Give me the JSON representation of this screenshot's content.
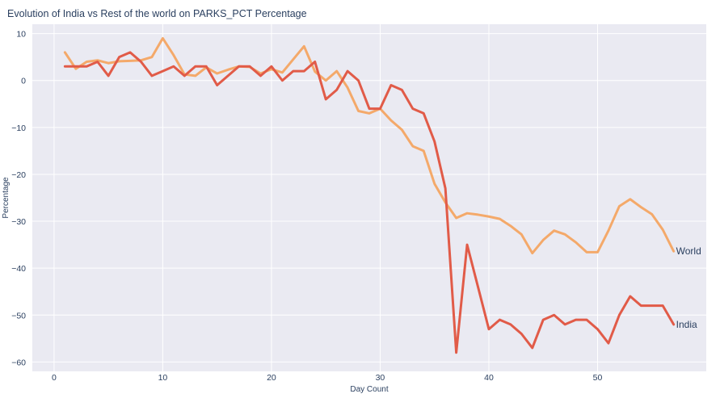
{
  "chart_data": {
    "type": "line",
    "title": "Evolution of India vs Rest of the world on PARKS_PCT Percentage",
    "xlabel": "Day Count",
    "ylabel": "Percentage",
    "xlim": [
      -2,
      60
    ],
    "ylim": [
      -62,
      12
    ],
    "xticks": [
      0,
      10,
      20,
      30,
      40,
      50
    ],
    "yticks": [
      10,
      0,
      -10,
      -20,
      -30,
      -40,
      -50,
      -60
    ],
    "grid": true,
    "legend": "end-of-line labels",
    "x": [
      1,
      2,
      3,
      4,
      5,
      6,
      7,
      8,
      9,
      10,
      11,
      12,
      13,
      14,
      15,
      16,
      17,
      18,
      19,
      20,
      21,
      22,
      23,
      24,
      25,
      26,
      27,
      28,
      29,
      30,
      31,
      32,
      33,
      34,
      35,
      36,
      37,
      38,
      39,
      40,
      41,
      42,
      43,
      44,
      45,
      46,
      47,
      48,
      49,
      50,
      51,
      52,
      53,
      54,
      55,
      56,
      57
    ],
    "series": [
      {
        "name": "World",
        "color": "#f4a96a",
        "values": [
          6,
          2.5,
          4,
          4.3,
          3.7,
          4.1,
          4.2,
          4.3,
          5,
          9,
          5.4,
          1.3,
          1,
          2.8,
          1.5,
          2.3,
          3,
          2.9,
          1.5,
          2.4,
          1.7,
          4.5,
          7.3,
          1.9,
          0,
          2,
          -1.5,
          -6.5,
          -7,
          -6,
          -8.5,
          -10.5,
          -14,
          -15,
          -22,
          -26,
          -29.3,
          -28.3,
          -28.6,
          -29,
          -29.5,
          -31,
          -32.8,
          -36.8,
          -34,
          -32,
          -32.8,
          -34.5,
          -36.6,
          -36.6,
          -32,
          -26.8,
          -25.3,
          -27,
          -28.5,
          -31.8,
          -36.4
        ]
      },
      {
        "name": "India",
        "color": "#e15b48",
        "values": [
          3,
          3,
          3,
          4,
          1,
          5,
          6,
          4,
          1,
          2,
          3,
          1,
          3,
          3,
          -1,
          1,
          3,
          3,
          1,
          3,
          0,
          2,
          2,
          4,
          -4,
          -2,
          2,
          0,
          -6,
          -6,
          -1,
          -2,
          -6,
          -7,
          -13,
          -23,
          -58,
          -35,
          -44,
          -53,
          -51,
          -52,
          -54,
          -57,
          -51,
          -50,
          -52,
          -51,
          -51,
          -53,
          -56,
          -50,
          -46,
          -48,
          -48,
          -48,
          -52
        ]
      }
    ]
  }
}
